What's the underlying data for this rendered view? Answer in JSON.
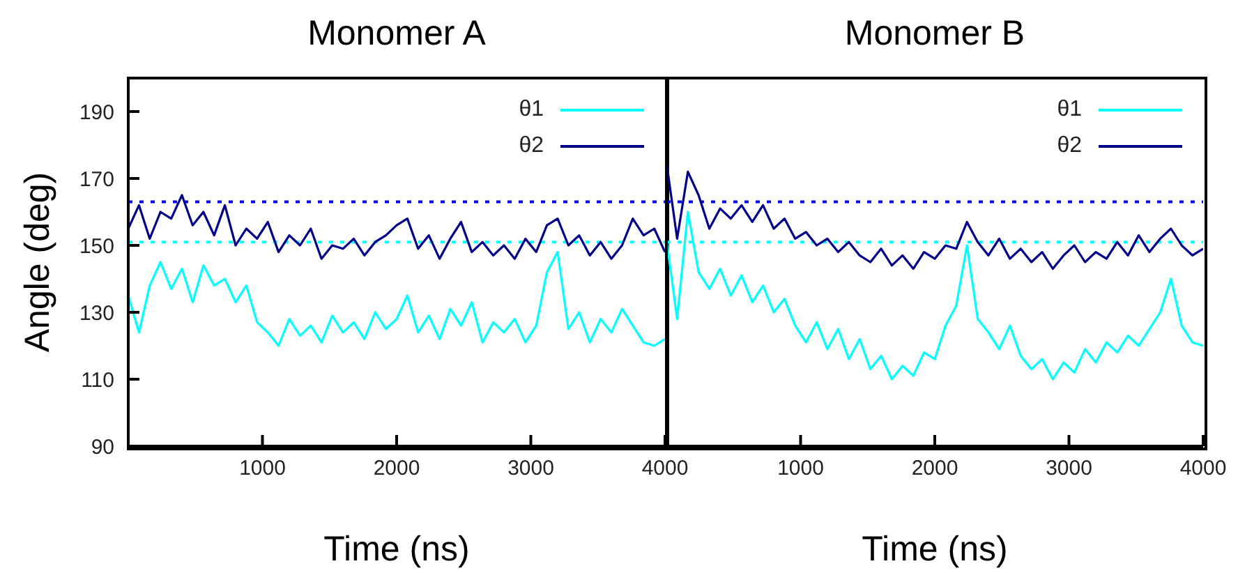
{
  "chart_data": [
    {
      "type": "line",
      "title": "Monomer A",
      "xlabel": "Time (ns)",
      "ylabel": "Angle (deg)",
      "x": [
        0,
        80,
        160,
        240,
        320,
        400,
        480,
        560,
        640,
        720,
        800,
        880,
        960,
        1040,
        1120,
        1200,
        1280,
        1360,
        1440,
        1520,
        1600,
        1680,
        1760,
        1840,
        1920,
        2000,
        2080,
        2160,
        2240,
        2320,
        2400,
        2480,
        2560,
        2640,
        2720,
        2800,
        2880,
        2960,
        3040,
        3120,
        3200,
        3280,
        3360,
        3440,
        3520,
        3600,
        3680,
        3760,
        3840,
        3920,
        4000
      ],
      "series": [
        {
          "name": "θ1",
          "color": "#00ffff",
          "values": [
            135,
            124,
            138,
            145,
            137,
            143,
            133,
            144,
            138,
            140,
            133,
            138,
            127,
            124,
            120,
            128,
            123,
            126,
            121,
            129,
            124,
            127,
            122,
            130,
            125,
            128,
            135,
            124,
            129,
            122,
            131,
            126,
            133,
            121,
            127,
            124,
            128,
            121,
            126,
            142,
            148,
            125,
            130,
            121,
            128,
            124,
            131,
            126,
            121,
            120,
            122
          ]
        },
        {
          "name": "θ2",
          "color": "#00008b",
          "values": [
            155,
            162,
            152,
            160,
            158,
            165,
            156,
            160,
            153,
            162,
            150,
            155,
            152,
            157,
            148,
            153,
            150,
            155,
            146,
            150,
            149,
            152,
            147,
            151,
            153,
            156,
            158,
            149,
            153,
            146,
            152,
            157,
            148,
            151,
            147,
            150,
            146,
            152,
            148,
            156,
            158,
            150,
            153,
            147,
            151,
            146,
            150,
            158,
            153,
            155,
            148
          ]
        }
      ],
      "xlim": [
        0,
        4000
      ],
      "ylim": [
        90,
        200
      ],
      "xticks": [
        1000,
        2000,
        3000,
        4000
      ],
      "yticks": [
        90,
        110,
        130,
        150,
        170,
        190
      ],
      "ref_lines": [
        {
          "axis": "y",
          "value": 163,
          "color": "#0000ff",
          "line_style": "dotted"
        },
        {
          "axis": "y",
          "value": 151,
          "color": "#00ffff",
          "line_style": "dotted"
        }
      ],
      "legend": "top right"
    },
    {
      "type": "line",
      "title": "Monomer B",
      "xlabel": "Time (ns)",
      "x": [
        0,
        80,
        160,
        240,
        320,
        400,
        480,
        560,
        640,
        720,
        800,
        880,
        960,
        1040,
        1120,
        1200,
        1280,
        1360,
        1440,
        1520,
        1600,
        1680,
        1760,
        1840,
        1920,
        2000,
        2080,
        2160,
        2240,
        2320,
        2400,
        2480,
        2560,
        2640,
        2720,
        2800,
        2880,
        2960,
        3040,
        3120,
        3200,
        3280,
        3360,
        3440,
        3520,
        3600,
        3680,
        3760,
        3840,
        3920,
        4000
      ],
      "series": [
        {
          "name": "θ1",
          "color": "#00ffff",
          "values": [
            152,
            128,
            160,
            142,
            137,
            143,
            135,
            141,
            133,
            138,
            130,
            134,
            126,
            121,
            127,
            119,
            125,
            116,
            122,
            113,
            117,
            110,
            114,
            111,
            118,
            116,
            126,
            132,
            150,
            128,
            124,
            119,
            126,
            117,
            113,
            116,
            110,
            115,
            112,
            119,
            115,
            121,
            118,
            123,
            120,
            125,
            130,
            140,
            126,
            121,
            120
          ]
        },
        {
          "name": "θ2",
          "color": "#00008b",
          "values": [
            175,
            152,
            172,
            165,
            155,
            161,
            158,
            162,
            157,
            162,
            155,
            158,
            152,
            154,
            150,
            152,
            148,
            151,
            147,
            145,
            149,
            144,
            147,
            143,
            148,
            146,
            150,
            149,
            157,
            151,
            147,
            152,
            146,
            149,
            145,
            148,
            143,
            147,
            150,
            145,
            148,
            146,
            151,
            147,
            153,
            148,
            152,
            155,
            150,
            147,
            149
          ]
        }
      ],
      "xlim": [
        0,
        4000
      ],
      "ylim": [
        90,
        200
      ],
      "xticks": [
        1000,
        2000,
        3000,
        4000
      ],
      "yticks": [
        90,
        110,
        130,
        150,
        170,
        190
      ],
      "ref_lines": [
        {
          "axis": "y",
          "value": 163,
          "color": "#0000ff",
          "line_style": "dotted"
        },
        {
          "axis": "y",
          "value": 151,
          "color": "#00ffff",
          "line_style": "dotted"
        }
      ],
      "legend": "top right",
      "tick_labels": "x"
    }
  ]
}
